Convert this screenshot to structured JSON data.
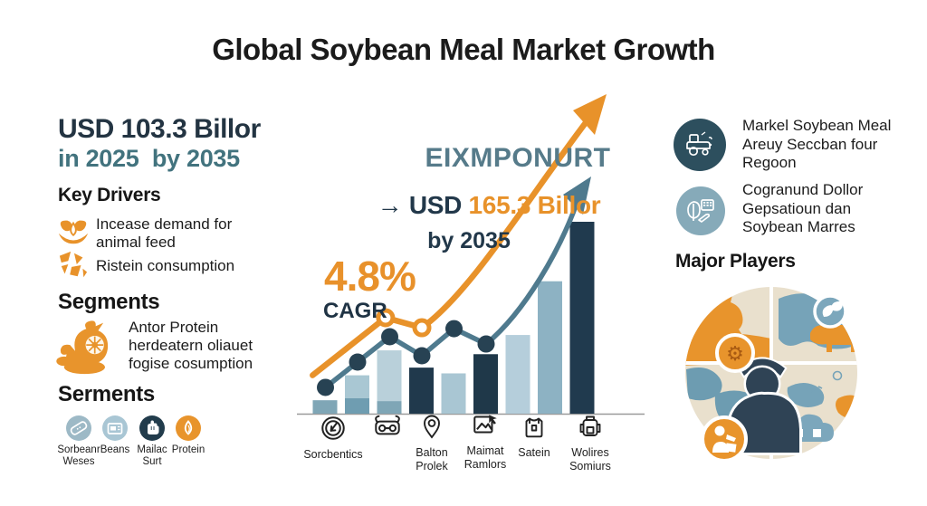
{
  "title": "Global Soybean Meal Market Growth",
  "palette": {
    "orange": "#e8922a",
    "dark_navy": "#22384a",
    "teal_subhead": "#42737e",
    "slate_heading": "#567b8a",
    "line_teal": "#4f7a8e",
    "bar_light_blue": "#a9c6d3",
    "bar_dark_navy": "#203a4e"
  },
  "left": {
    "headline": "USD 103.3 Billor",
    "subheadline": "in 2025  by 2035",
    "key_drivers": {
      "heading": "Key Drivers",
      "items": [
        {
          "icon": "feed-flower-icon",
          "label": "Incease demand for animal feed"
        },
        {
          "icon": "map-fragments-icon",
          "label": "Ristein consumption"
        }
      ]
    },
    "segments": {
      "heading": "Segments",
      "icon": "bird-wheel-icon",
      "description": "Antor Protein\nherdeatern oliauet\nfogise cosumption"
    },
    "serments": {
      "heading": "Serments",
      "items": [
        {
          "icon": "bandage-icon",
          "color": "#9db9c6",
          "label": "Sorbeanr\nWeses"
        },
        {
          "icon": "card-icon",
          "color": "#a9c6d4",
          "label": "Beans"
        },
        {
          "icon": "fist-icon",
          "color": "#223c4c",
          "label": "Mailac\nSurt"
        },
        {
          "icon": "droplet-icon",
          "color": "#e8942c",
          "label": "Protein"
        }
      ]
    }
  },
  "chart": {
    "heading": "EIXMPONURT",
    "target_prefix": "→ USD ",
    "target_value": "165.3 Billor",
    "target_suffix": "by 2035",
    "cagr_value": "4.8%",
    "cagr_label": "CAGR",
    "x_items": [
      {
        "icon": "gauge-circle-icon",
        "label": "Sorcbentics"
      },
      {
        "icon": "binoculars-icon",
        "label": ""
      },
      {
        "icon": "map-pin-icon",
        "label": "Balton\nProlek"
      },
      {
        "icon": "image-cursor-icon",
        "label": "Maimat\nRamlors"
      },
      {
        "icon": "vest-icon",
        "label": "Satein"
      },
      {
        "icon": "backpack-icon",
        "label": "Wolires\nSomiurs"
      }
    ]
  },
  "chart_data": {
    "type": "combo",
    "scale": "relative 0-100 (chart shows no numeric axis)",
    "x_categories": [
      "Sorcbentics",
      "",
      "Balton Prolek",
      "Maimat Ramlors",
      "Satein",
      "Wolires Somiurs"
    ],
    "bars": [
      {
        "v": 7,
        "c": "#7fa6b6"
      },
      {
        "v": 20,
        "c": "#a9c7d3",
        "shade": 8,
        "sc": "#6f9db1"
      },
      {
        "v": 33,
        "c": "#b9d0da",
        "shade": 6.5,
        "sc": "#7fa6b6"
      },
      {
        "v": 24,
        "c": "#20394c"
      },
      {
        "v": 21,
        "c": "#a9c6d3"
      },
      {
        "v": 31,
        "c": "#1f3849"
      },
      {
        "v": 41,
        "c": "#b5cedb"
      },
      {
        "v": 69,
        "c": "#8db2c3"
      },
      {
        "v": 100,
        "c": "#203a4e"
      }
    ],
    "lines": [
      {
        "name": "market-line-teal",
        "color": "#4f7a8e",
        "width": 5.5,
        "points": [
          {
            "i": 0,
            "v": 13.7,
            "m": "dark"
          },
          {
            "i": 1,
            "v": 26.9,
            "m": "dark"
          },
          {
            "i": 2,
            "v": 40.1,
            "m": "dark"
          },
          {
            "i": 3,
            "v": 30.2,
            "m": "dark"
          },
          {
            "i": 4,
            "v": 44.3,
            "m": "dark"
          },
          {
            "i": 5,
            "v": 36.3,
            "m": "dark"
          }
        ]
      },
      {
        "name": "growth-line-orange",
        "color": "#e8922a",
        "width": 6.5,
        "points": [
          {
            "i": -0.4,
            "v": 20
          },
          {
            "i": 1.87,
            "v": 50,
            "m": "ring"
          },
          {
            "i": 3.0,
            "v": 44.8,
            "m": "ring"
          }
        ]
      }
    ],
    "annotations": [
      "4.8% CAGR",
      "EIXMPONURT",
      "→ USD 165.3 Billor by 2035"
    ]
  },
  "right": {
    "items": [
      {
        "icon": "tractor-circle-icon",
        "color": "#2d4f5e",
        "text": "Markel Soybean Meal\nAreuy Seccban four\nRegoon"
      },
      {
        "icon": "leaf-calculator-circle-icon",
        "color": "#86aab9",
        "text": "Cogranund Dollor\nGepsatioun dan\nSoybean Marres"
      }
    ],
    "major_players_heading": "Major Players",
    "illustration": "globe-farmer-livestock"
  }
}
